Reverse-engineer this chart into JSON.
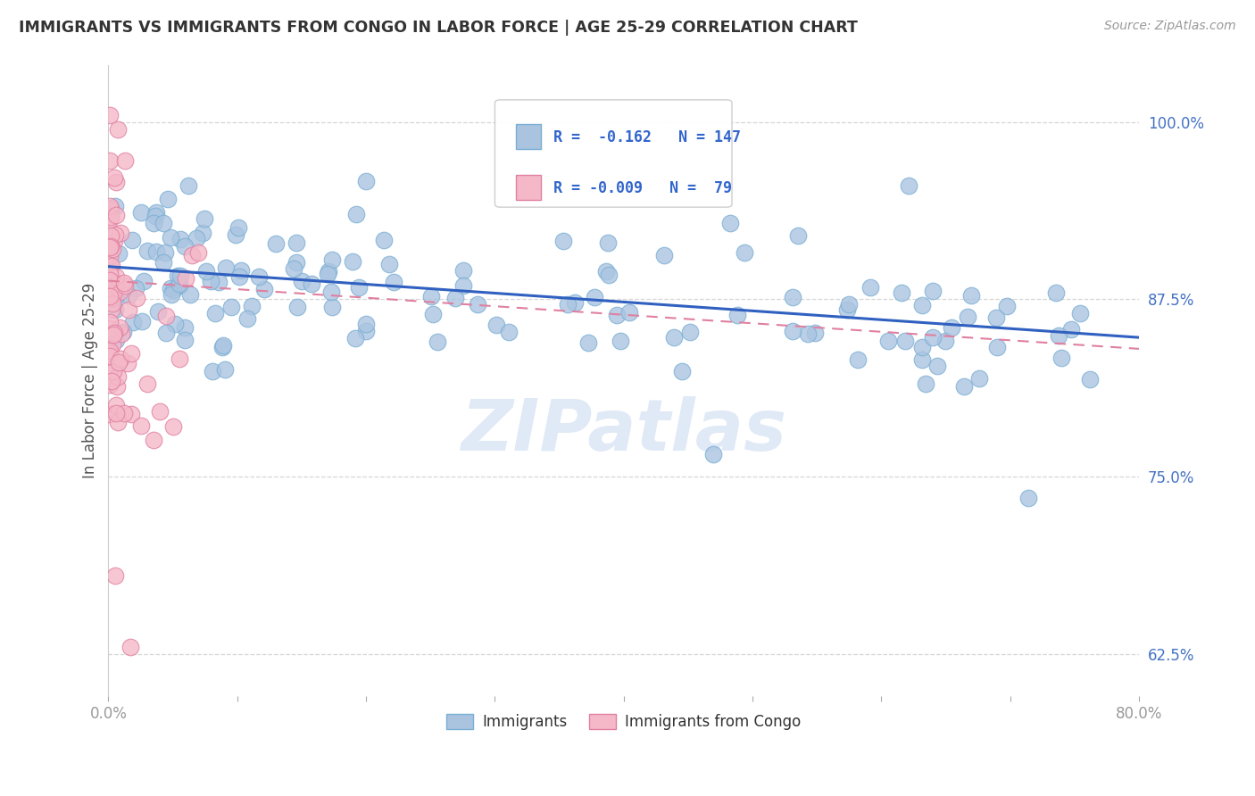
{
  "title": "IMMIGRANTS VS IMMIGRANTS FROM CONGO IN LABOR FORCE | AGE 25-29 CORRELATION CHART",
  "source_text": "Source: ZipAtlas.com",
  "ylabel": "In Labor Force | Age 25-29",
  "xlim": [
    0.0,
    0.8
  ],
  "ylim": [
    0.595,
    1.04
  ],
  "xticks": [
    0.0,
    0.1,
    0.2,
    0.3,
    0.4,
    0.5,
    0.6,
    0.7,
    0.8
  ],
  "xticklabels": [
    "0.0%",
    "",
    "",
    "",
    "",
    "",
    "",
    "",
    "80.0%"
  ],
  "yticks": [
    0.625,
    0.75,
    0.875,
    1.0
  ],
  "yticklabels": [
    "62.5%",
    "75.0%",
    "87.5%",
    "100.0%"
  ],
  "blue_color": "#aac4e0",
  "blue_edge": "#7aafd4",
  "pink_color": "#f4b8c8",
  "pink_edge": "#e080a0",
  "trend_blue_color": "#3060c0",
  "trend_pink_color": "#e080a0",
  "R_blue": -0.162,
  "N_blue": 147,
  "R_pink": -0.009,
  "N_pink": 79,
  "legend_label_blue": "Immigrants",
  "legend_label_pink": "Immigrants from Congo",
  "watermark": "ZIPatlas",
  "background_color": "#ffffff",
  "grid_color": "#cccccc",
  "title_color": "#333333",
  "axis_label_color": "#555555",
  "tick_color_x": "#999999",
  "tick_color_y": "#4472c4"
}
